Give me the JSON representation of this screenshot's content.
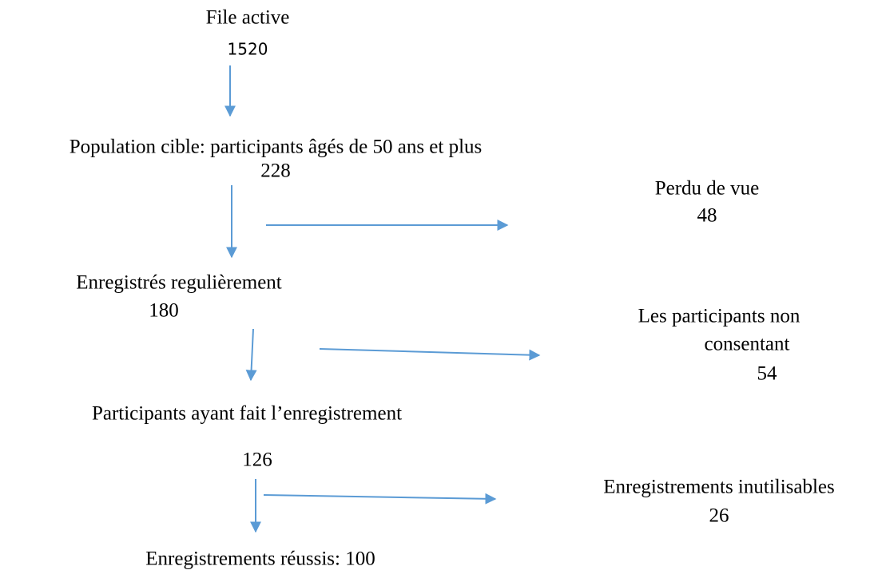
{
  "nodes": [
    {
      "label": "File active",
      "count": "1520"
    },
    {
      "label": "Population  cible: participants âgés de 50 ans et plus",
      "count": "228"
    },
    {
      "label": "Perdu de vue",
      "count": "48"
    },
    {
      "label": "Enregistrés regulièrement",
      "count": "180"
    },
    {
      "label": "Les participants non",
      "label2": "consentant",
      "count": "54"
    },
    {
      "label": "Participants ayant fait l’enregistrement",
      "count": "126"
    },
    {
      "label": "Enregistrements inutilisables",
      "count": "26"
    },
    {
      "label": "Enregistrements réussis: 100"
    }
  ]
}
